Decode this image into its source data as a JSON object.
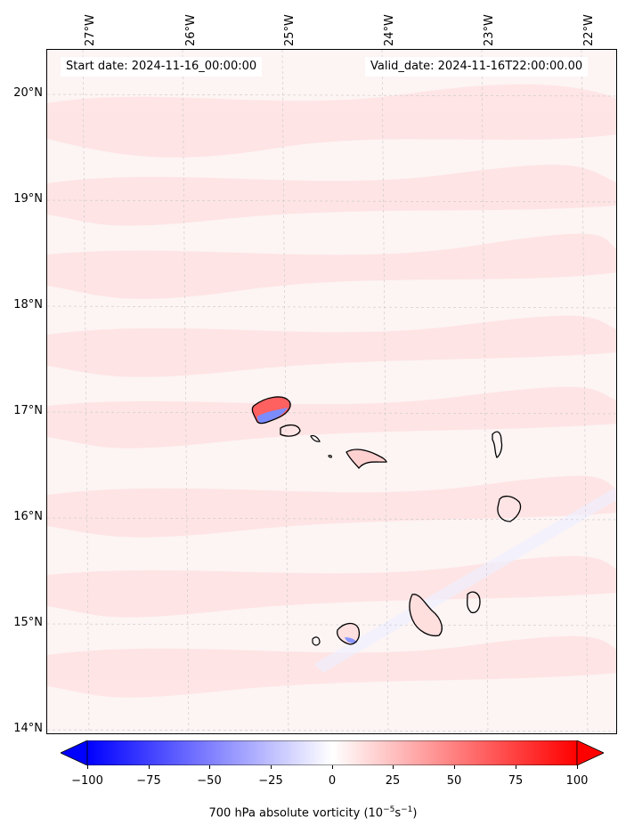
{
  "header": {
    "start_date": "Start date: 2024-11-16_00:00:00",
    "valid_date": "Valid_date: 2024-11-16T22:00:00.00"
  },
  "longitude_labels": [
    "27°W",
    "26°W",
    "25°W",
    "24°W",
    "23°W",
    "22°W"
  ],
  "latitude_labels": [
    "20°N",
    "19°N",
    "18°N",
    "17°N",
    "16°N",
    "15°N",
    "14°N"
  ],
  "colorbar": {
    "ticks": [
      "−100",
      "−75",
      "−50",
      "−25",
      "0",
      "25",
      "50",
      "75",
      "100"
    ],
    "label_main": "700 hPa absolute vorticity (10",
    "label_exp1": "−5",
    "label_mid": "s",
    "label_exp2": "−1",
    "label_end": ")",
    "min": -100,
    "max": 100,
    "extend": "both",
    "colormap": "bwr"
  },
  "colors": {
    "background": "#fdf4f4",
    "light_red": "#ffe6e6",
    "coast": "#000000"
  }
}
